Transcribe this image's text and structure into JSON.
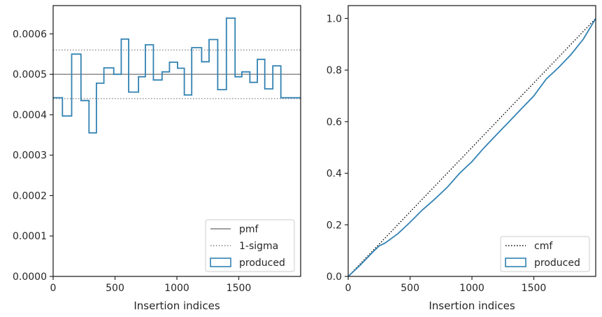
{
  "chart_data": [
    {
      "type": "line",
      "subtype": "step-histogram",
      "title": "",
      "xlabel": "Insertion indices",
      "ylabel": "",
      "xlim": [
        0,
        2000
      ],
      "ylim": [
        0,
        0.00067
      ],
      "x_ticks": [
        0,
        500,
        1000,
        1500
      ],
      "x_tick_labels": [
        "0",
        "500",
        "1000",
        "1500"
      ],
      "y_ticks": [
        0,
        0.0001,
        0.0002,
        0.0003,
        0.0004,
        0.0005,
        0.0006
      ],
      "y_tick_labels": [
        "0.0000",
        "0.0001",
        "0.0002",
        "0.0003",
        "0.0004",
        "0.0005",
        "0.0006"
      ],
      "grid": false,
      "legend_position": "bottom-right",
      "reference_lines": [
        {
          "name": "pmf",
          "y": 0.0005,
          "style": "solid",
          "color": "#808080"
        },
        {
          "name": "1-sigma",
          "y": 0.00056,
          "style": "dotted",
          "color": "#808080"
        },
        {
          "name": "1-sigma-lower",
          "y": 0.00044,
          "style": "dotted",
          "color": "#808080"
        }
      ],
      "series": [
        {
          "name": "produced",
          "color": "#3282b3",
          "bin_edges": [
            0,
            75,
            150,
            225,
            290,
            350,
            410,
            490,
            550,
            610,
            690,
            745,
            810,
            880,
            940,
            1005,
            1060,
            1120,
            1200,
            1260,
            1330,
            1400,
            1470,
            1525,
            1590,
            1650,
            1710,
            1775,
            1840,
            1910,
            1975
          ],
          "values": [
            0.000442,
            0.000397,
            0.00055,
            0.000435,
            0.000355,
            0.000478,
            0.000516,
            0.0005,
            0.000587,
            0.000456,
            0.000494,
            0.000573,
            0.000486,
            0.000506,
            0.00053,
            0.000515,
            0.000449,
            0.000566,
            0.000531,
            0.000586,
            0.000462,
            0.000639,
            0.000494,
            0.000506,
            0.00048,
            0.000537,
            0.000464,
            0.000521,
            0.000442,
            0.000442
          ]
        }
      ]
    },
    {
      "type": "line",
      "subtype": "cumulative",
      "title": "",
      "xlabel": "Insertion indices",
      "ylabel": "",
      "xlim": [
        0,
        2000
      ],
      "ylim": [
        0,
        1.05
      ],
      "x_ticks": [
        0,
        500,
        1000,
        1500
      ],
      "x_tick_labels": [
        "0",
        "500",
        "1000",
        "1500"
      ],
      "y_ticks": [
        0,
        0.2,
        0.4,
        0.6,
        0.8,
        1.0
      ],
      "y_tick_labels": [
        "0.0",
        "0.2",
        "0.4",
        "0.6",
        "0.8",
        "1.0"
      ],
      "grid": false,
      "legend_position": "bottom-right",
      "series": [
        {
          "name": "cmf",
          "style": "dotted",
          "color": "#000000",
          "x": [
            0,
            2000
          ],
          "y": [
            0,
            1.0
          ]
        },
        {
          "name": "produced",
          "style": "solid",
          "color": "#3282b3",
          "x": [
            0,
            100,
            200,
            250,
            300,
            400,
            500,
            600,
            700,
            800,
            900,
            1000,
            1100,
            1200,
            1300,
            1400,
            1500,
            1600,
            1700,
            1800,
            1900,
            2000
          ],
          "y": [
            0,
            0.045,
            0.095,
            0.118,
            0.13,
            0.165,
            0.21,
            0.258,
            0.3,
            0.345,
            0.4,
            0.445,
            0.5,
            0.55,
            0.6,
            0.65,
            0.7,
            0.765,
            0.81,
            0.86,
            0.92,
            1.0
          ]
        }
      ]
    }
  ]
}
